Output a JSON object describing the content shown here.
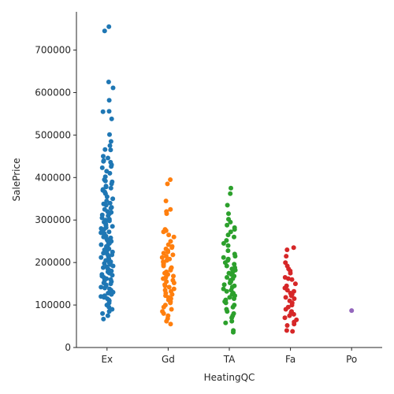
{
  "chart_data": {
    "type": "scatter",
    "subtype": "strip",
    "title": "",
    "xlabel": "HeatingQC",
    "ylabel": "SalePrice",
    "categories": [
      "Ex",
      "Gd",
      "TA",
      "Fa",
      "Po"
    ],
    "ylim": [
      0,
      790000
    ],
    "yticks": [
      0,
      100000,
      200000,
      300000,
      400000,
      500000,
      600000,
      700000
    ],
    "ytick_labels": [
      "0",
      "100000",
      "200000",
      "300000",
      "400000",
      "500000",
      "600000",
      "700000"
    ],
    "grid": false,
    "legend": "none",
    "series": [
      {
        "category": "Ex",
        "color": "#1f77b4",
        "values": [
          755000,
          745000,
          625000,
          611000,
          582000,
          556000,
          555000,
          538000,
          501000,
          485000,
          475000,
          466000,
          465000,
          450000,
          446000,
          440000,
          438000,
          436000,
          430000,
          426000,
          423000,
          415000,
          410000,
          402000,
          395000,
          392000,
          390000,
          385000,
          380000,
          378000,
          375000,
          372000,
          370000,
          366000,
          362000,
          355000,
          350000,
          345000,
          340000,
          338000,
          335000,
          330000,
          328000,
          325000,
          320000,
          318000,
          315000,
          312000,
          310000,
          305000,
          302000,
          300000,
          298000,
          295000,
          292000,
          290000,
          287000,
          285000,
          282000,
          280000,
          278000,
          275000,
          272000,
          270000,
          268000,
          265000,
          262000,
          260000,
          258000,
          255000,
          252000,
          250000,
          248000,
          245000,
          242000,
          240000,
          238000,
          235000,
          232000,
          230000,
          228000,
          225000,
          222000,
          220000,
          218000,
          215000,
          212000,
          210000,
          208000,
          205000,
          202000,
          200000,
          198000,
          195000,
          192000,
          190000,
          188000,
          185000,
          182000,
          180000,
          178000,
          175000,
          172000,
          170000,
          168000,
          165000,
          162000,
          160000,
          158000,
          155000,
          152000,
          150000,
          148000,
          145000,
          142000,
          140000,
          138000,
          135000,
          132000,
          130000,
          128000,
          125000,
          122000,
          120000,
          118000,
          115000,
          112000,
          110000,
          105000,
          100000,
          95000,
          90000,
          85000,
          80000,
          75000,
          67000
        ]
      },
      {
        "category": "Gd",
        "color": "#ff7f0e",
        "values": [
          395000,
          385000,
          345000,
          325000,
          320000,
          315000,
          278000,
          275000,
          272000,
          265000,
          260000,
          250000,
          242000,
          238000,
          235000,
          232000,
          228000,
          225000,
          222000,
          218000,
          215000,
          212000,
          208000,
          205000,
          202000,
          198000,
          195000,
          192000,
          188000,
          185000,
          182000,
          178000,
          175000,
          172000,
          168000,
          165000,
          162000,
          158000,
          155000,
          152000,
          148000,
          145000,
          142000,
          138000,
          135000,
          132000,
          128000,
          125000,
          122000,
          118000,
          115000,
          112000,
          108000,
          105000,
          100000,
          95000,
          90000,
          85000,
          80000,
          75000,
          68000,
          62000,
          55000
        ]
      },
      {
        "category": "TA",
        "color": "#2ca02c",
        "values": [
          375000,
          362000,
          335000,
          315000,
          302000,
          295000,
          288000,
          282000,
          278000,
          272000,
          265000,
          260000,
          252000,
          245000,
          240000,
          228000,
          220000,
          215000,
          212000,
          208000,
          205000,
          200000,
          196000,
          192000,
          188000,
          185000,
          182000,
          178000,
          175000,
          172000,
          168000,
          165000,
          162000,
          158000,
          155000,
          152000,
          148000,
          145000,
          142000,
          138000,
          135000,
          132000,
          128000,
          125000,
          122000,
          118000,
          115000,
          112000,
          108000,
          105000,
          100000,
          95000,
          90000,
          85000,
          80000,
          75000,
          70000,
          62000,
          58000,
          40000,
          36000
        ]
      },
      {
        "category": "Fa",
        "color": "#d62728",
        "values": [
          235000,
          230000,
          215000,
          200000,
          192000,
          185000,
          180000,
          175000,
          165000,
          162000,
          160000,
          150000,
          145000,
          140000,
          135000,
          132000,
          128000,
          125000,
          122000,
          118000,
          115000,
          110000,
          105000,
          100000,
          95000,
          90000,
          85000,
          82000,
          78000,
          75000,
          70000,
          65000,
          60000,
          55000,
          52000,
          40000,
          38000
        ]
      },
      {
        "category": "Po",
        "color": "#9467bd",
        "values": [
          87000
        ]
      }
    ]
  }
}
